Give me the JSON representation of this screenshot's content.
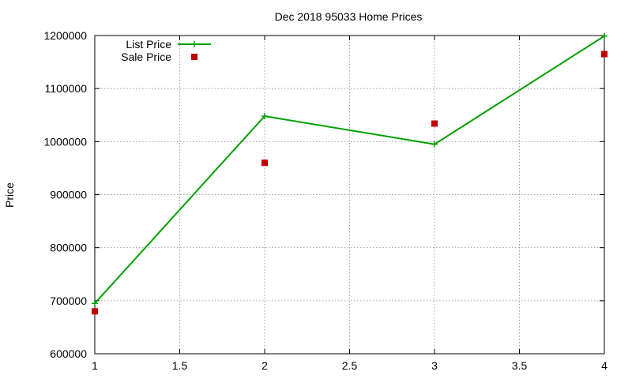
{
  "chart_data": {
    "type": "line",
    "title": "Dec 2018 95033 Home Prices",
    "xlabel": "",
    "ylabel": "Price",
    "xlim": [
      1,
      4
    ],
    "ylim": [
      600000,
      1200000
    ],
    "xticks": [
      "1",
      "1.5",
      "2",
      "2.5",
      "3",
      "3.5",
      "4"
    ],
    "yticks": [
      "600000",
      "700000",
      "800000",
      "900000",
      "1000000",
      "1100000",
      "1200000"
    ],
    "grid": true,
    "legend_position": "top-left",
    "series": [
      {
        "name": "List Price",
        "style": "line-with-plus-markers",
        "color": "#00a000",
        "points": [
          [
            1,
            695000
          ],
          [
            2,
            1048000
          ],
          [
            3,
            995000
          ],
          [
            4,
            1199000
          ]
        ]
      },
      {
        "name": "Sale Price",
        "style": "square-markers",
        "color": "#c00000",
        "points": [
          [
            1,
            680000
          ],
          [
            2,
            960000
          ],
          [
            3,
            1034000
          ],
          [
            4,
            1165000
          ]
        ]
      }
    ]
  }
}
